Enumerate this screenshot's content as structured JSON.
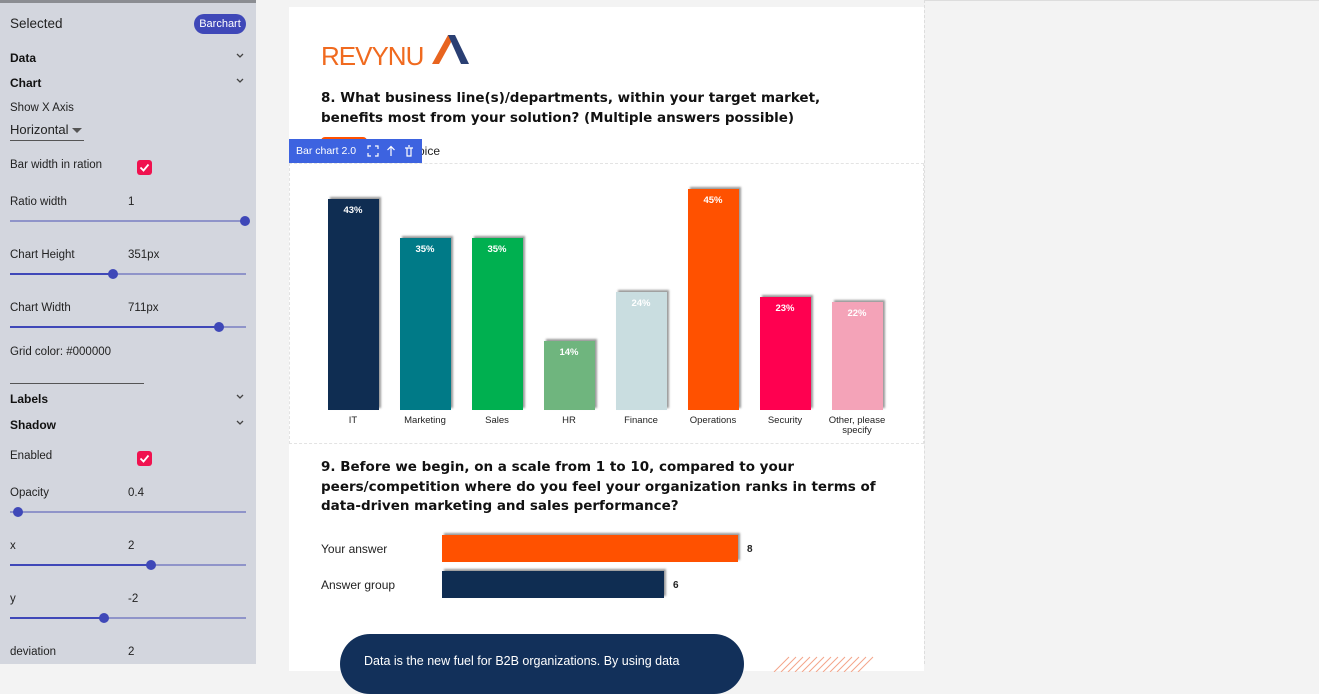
{
  "sidebar": {
    "heading": "Selected",
    "badge": "Barchart",
    "sections": {
      "data": "Data",
      "chart": "Chart",
      "labels": "Labels",
      "shadow": "Shadow"
    },
    "show_x_axis": {
      "label": "Show X Axis",
      "value": "Horizontal"
    },
    "bar_width_in_ratio": "Bar width in ration",
    "ratio_width": {
      "label": "Ratio width",
      "value": "1"
    },
    "chart_height": {
      "label": "Chart Height",
      "value": "351px"
    },
    "chart_width": {
      "label": "Chart Width",
      "value": "711px"
    },
    "grid_color": "Grid color: #000000",
    "enabled": "Enabled",
    "opacity": {
      "label": "Opacity",
      "value": "0.4"
    },
    "x": {
      "label": "x",
      "value": "2"
    },
    "y": {
      "label": "y",
      "value": "-2"
    },
    "deviation": {
      "label": "deviation",
      "value": "2"
    }
  },
  "main": {
    "logo": "REVYNU",
    "legend_fragment": "oice",
    "toolbar": "Bar chart 2.0",
    "banner": "Data is the new fuel for B2B organizations. By using data"
  },
  "chart_data": [
    {
      "type": "bar",
      "title": "8. What business line(s)/departments, within your target market, benefits most from your solution? (Multiple answers possible)",
      "categories": [
        "IT",
        "Marketing",
        "Sales",
        "HR",
        "Finance",
        "Operations",
        "Security",
        "Other, please specify"
      ],
      "values": [
        43,
        35,
        35,
        14,
        24,
        45,
        23,
        22
      ],
      "value_labels": [
        "43%",
        "35%",
        "35%",
        "14%",
        "24%",
        "45%",
        "23%",
        "22%"
      ],
      "colors": [
        "#0f2d52",
        "#007a87",
        "#00b050",
        "#6fb57e",
        "#c9dde0",
        "#ff5100",
        "#ff0050",
        "#f4a3b8"
      ]
    },
    {
      "type": "hbar",
      "title": "9. Before we begin, on a scale from 1 to 10, compared to your peers/competition where do you feel your organization ranks in terms of data-driven marketing and sales performance?",
      "categories": [
        "Your answer",
        "Answer group"
      ],
      "values": [
        8,
        6
      ],
      "colors": [
        "#ff5100",
        "#0f2d52"
      ]
    }
  ]
}
